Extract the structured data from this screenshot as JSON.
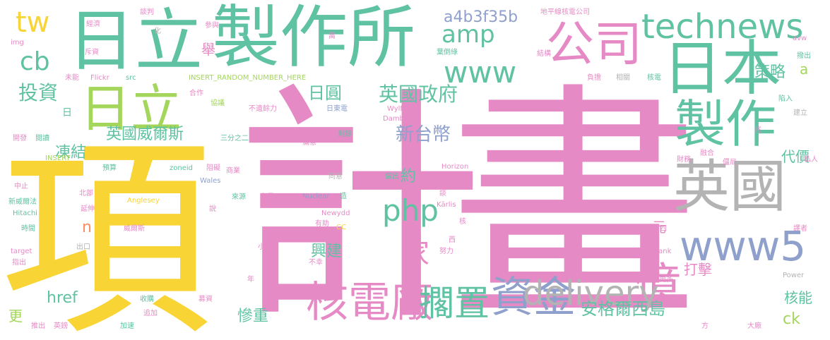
{
  "colors": {
    "yellow": "#f9d435",
    "pink": "#e68ac6",
    "teal": "#5fc2a2",
    "green": "#a3d65a",
    "gray": "#b3b3b3",
    "blue": "#8ea0cb",
    "orange": "#fb8d62",
    "tan": "#e5c494"
  },
  "words": [
    {
      "text": "計畫",
      "color": "pink"
    },
    {
      "text": "項",
      "color": "yellow"
    },
    {
      "text": "製作所",
      "color": "teal"
    },
    {
      "text": "日立",
      "color": "teal"
    },
    {
      "text": "日立",
      "color": "green"
    },
    {
      "text": "日本",
      "color": "teal"
    },
    {
      "text": "公司",
      "color": "pink"
    },
    {
      "text": "technews",
      "color": "teal"
    },
    {
      "text": "製作",
      "color": "teal"
    },
    {
      "text": "英國",
      "color": "gray"
    },
    {
      "text": "www5",
      "color": "blue"
    },
    {
      "text": "億",
      "color": "pink"
    },
    {
      "text": "資金",
      "color": "blue"
    },
    {
      "text": "核電廠",
      "color": "pink"
    },
    {
      "text": "擱置",
      "color": "teal"
    },
    {
      "text": "delivery",
      "color": "gray"
    },
    {
      "text": "php",
      "color": "teal"
    },
    {
      "text": "家",
      "color": "pink"
    },
    {
      "text": "www",
      "color": "teal"
    },
    {
      "text": "amp",
      "color": "teal"
    },
    {
      "text": "tw",
      "color": "yellow"
    },
    {
      "text": "cb",
      "color": "teal"
    },
    {
      "text": "a4b3f35b",
      "color": "blue"
    },
    {
      "text": "投資",
      "color": "teal"
    },
    {
      "text": "英國政府",
      "color": "teal"
    },
    {
      "text": "日圓",
      "color": "teal"
    },
    {
      "text": "新台幣",
      "color": "blue"
    },
    {
      "text": "英國威爾斯",
      "color": "teal"
    },
    {
      "text": "凍結",
      "color": "teal"
    },
    {
      "text": "安格爾西島",
      "color": "teal"
    },
    {
      "text": "興建",
      "color": "teal"
    },
    {
      "text": "打擊",
      "color": "pink"
    },
    {
      "text": "策略",
      "color": "teal"
    },
    {
      "text": "代價",
      "color": "teal"
    },
    {
      "text": "核能",
      "color": "teal"
    },
    {
      "text": "慘重",
      "color": "teal"
    },
    {
      "text": "href",
      "color": "teal"
    },
    {
      "text": "ck",
      "color": "green"
    },
    {
      "text": "約",
      "color": "teal"
    },
    {
      "text": "元",
      "color": "pink"
    },
    {
      "text": "更",
      "color": "green"
    },
    {
      "text": "n",
      "color": "orange"
    },
    {
      "text": "a",
      "color": "green"
    },
    {
      "text": "舉",
      "color": "pink"
    },
    {
      "text": "日",
      "color": "teal"
    },
    {
      "text": "談判",
      "color": "pink"
    },
    {
      "text": "地平線核電公司",
      "color": "pink"
    },
    {
      "text": "經濟",
      "color": "pink"
    },
    {
      "text": "化",
      "color": "gray"
    },
    {
      "text": "參與",
      "color": "pink"
    },
    {
      "text": "萬",
      "color": "pink"
    },
    {
      "text": "avw",
      "color": "pink"
    },
    {
      "text": "撥出",
      "color": "teal"
    },
    {
      "text": "img",
      "color": "pink"
    },
    {
      "text": "斥資",
      "color": "pink"
    },
    {
      "text": "葉倒綠",
      "color": "teal"
    },
    {
      "text": "結構",
      "color": "pink"
    },
    {
      "text": "未能",
      "color": "pink"
    },
    {
      "text": "Flickr",
      "color": "pink"
    },
    {
      "text": "src",
      "color": "teal"
    },
    {
      "text": "INSERT_RANDOM_NUMBER_HERE",
      "color": "green"
    },
    {
      "text": "負擔",
      "color": "pink"
    },
    {
      "text": "相關",
      "color": "gray"
    },
    {
      "text": "核電",
      "color": "teal"
    },
    {
      "text": "合作",
      "color": "pink"
    },
    {
      "text": "協議",
      "color": "green"
    },
    {
      "text": "不遺餘力",
      "color": "pink"
    },
    {
      "text": "日東電",
      "color": "blue"
    },
    {
      "text": "Wylfa",
      "color": "pink"
    },
    {
      "text": "Dambrāns",
      "color": "pink"
    },
    {
      "text": "陷入",
      "color": "teal"
    },
    {
      "text": "建立",
      "color": "gray"
    },
    {
      "text": "開發",
      "color": "pink"
    },
    {
      "text": "閱讀",
      "color": "teal"
    },
    {
      "text": "三分之二",
      "color": "teal"
    },
    {
      "text": "剩餘",
      "color": "teal"
    },
    {
      "text": "滿意",
      "color": "pink"
    },
    {
      "text": "達成",
      "color": "pink"
    },
    {
      "text": "兆",
      "color": "pink"
    },
    {
      "text": "INSERT",
      "color": "green"
    },
    {
      "text": "融合",
      "color": "pink"
    },
    {
      "text": "私人",
      "color": "pink"
    },
    {
      "text": "預算",
      "color": "teal"
    },
    {
      "text": "zoneid",
      "color": "teal"
    },
    {
      "text": "阻礙",
      "color": "pink"
    },
    {
      "text": "商業",
      "color": "pink"
    },
    {
      "text": "同意",
      "color": "gray"
    },
    {
      "text": "做出",
      "color": "teal"
    },
    {
      "text": "首圖",
      "color": "pink"
    },
    {
      "text": "Horizon",
      "color": "pink"
    },
    {
      "text": "財務",
      "color": "pink"
    },
    {
      "text": "僵局",
      "color": "pink"
    },
    {
      "text": "中止",
      "color": "pink"
    },
    {
      "text": "北部",
      "color": "pink"
    },
    {
      "text": "Wales",
      "color": "blue"
    },
    {
      "text": "來源",
      "color": "teal"
    },
    {
      "text": "考量",
      "color": "pink"
    },
    {
      "text": "造",
      "color": "teal"
    },
    {
      "text": "談",
      "color": "pink"
    },
    {
      "text": "Kārlis",
      "color": "pink"
    },
    {
      "text": "推出",
      "color": "pink"
    },
    {
      "text": "新威爾法",
      "color": "teal"
    },
    {
      "text": "延伸",
      "color": "pink"
    },
    {
      "text": "Anglesey",
      "color": "yellow"
    },
    {
      "text": "Nuclear",
      "color": "blue"
    },
    {
      "text": "Hitachi",
      "color": "teal"
    },
    {
      "text": "說",
      "color": "pink"
    },
    {
      "text": "Newydd",
      "color": "pink"
    },
    {
      "text": "時間",
      "color": "teal"
    },
    {
      "text": "威爾斯",
      "color": "pink"
    },
    {
      "text": "有助",
      "color": "pink"
    },
    {
      "text": "CC",
      "color": "yellow"
    },
    {
      "text": "核",
      "color": "pink"
    },
    {
      "text": "四",
      "color": "pink"
    },
    {
      "text": "譯者",
      "color": "pink"
    },
    {
      "text": "_blank",
      "color": "pink"
    },
    {
      "text": "target",
      "color": "pink"
    },
    {
      "text": "出口",
      "color": "gray"
    },
    {
      "text": "小島",
      "color": "pink"
    },
    {
      "text": "出資",
      "color": "pink"
    },
    {
      "text": "西",
      "color": "pink"
    },
    {
      "text": "努力",
      "color": "pink"
    },
    {
      "text": "指出",
      "color": "pink"
    },
    {
      "text": "不幸",
      "color": "pink"
    },
    {
      "text": "Power",
      "color": "gray"
    },
    {
      "text": "年",
      "color": "pink"
    },
    {
      "text": "虧損",
      "color": "pink"
    },
    {
      "text": "更多",
      "color": "pink"
    },
    {
      "text": "收購",
      "color": "teal"
    },
    {
      "text": "募資",
      "color": "pink"
    },
    {
      "text": "追加",
      "color": "pink"
    },
    {
      "text": "加速",
      "color": "teal"
    },
    {
      "text": "英鎊",
      "color": "pink"
    },
    {
      "text": "方",
      "color": "pink"
    },
    {
      "text": "大廠",
      "color": "pink"
    }
  ]
}
